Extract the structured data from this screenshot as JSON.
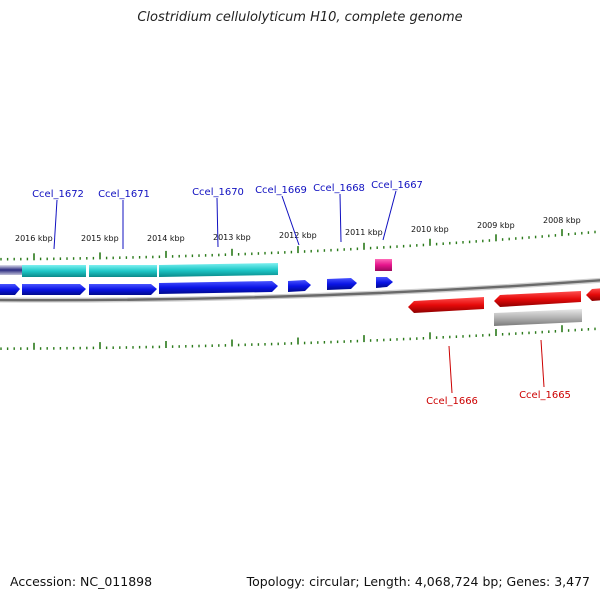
{
  "title": "Clostridium cellulolyticum H10, complete genome",
  "footer": {
    "accession": "Accession: NC_011898",
    "topology": "Topology: circular; Length: 4,068,724 bp; Genes: 3,477"
  },
  "colors": {
    "cds_forward": "#0a14e6",
    "cds_reverse": "#e60a0a",
    "cyan_feature": "#1ec8c8",
    "pink_feature": "#e6148c",
    "gray_feature": "#b4b4b4",
    "backbone": "#777777",
    "tick": "#2a7a1a",
    "label_forward": "#1010c0",
    "label_reverse": "#cc0000"
  },
  "scale_labels": [
    "2016 kbp",
    "2015 kbp",
    "2014 kbp",
    "2013 kbp",
    "2012 kbp",
    "2011 kbp",
    "2010 kbp",
    "2009 kbp",
    "2008 kbp"
  ],
  "gene_labels_top": [
    "Ccel_1672",
    "Ccel_1671",
    "Ccel_1670",
    "Ccel_1669",
    "Ccel_1668",
    "Ccel_1667"
  ],
  "gene_labels_bottom": [
    "Ccel_1666",
    "Ccel_1665"
  ]
}
